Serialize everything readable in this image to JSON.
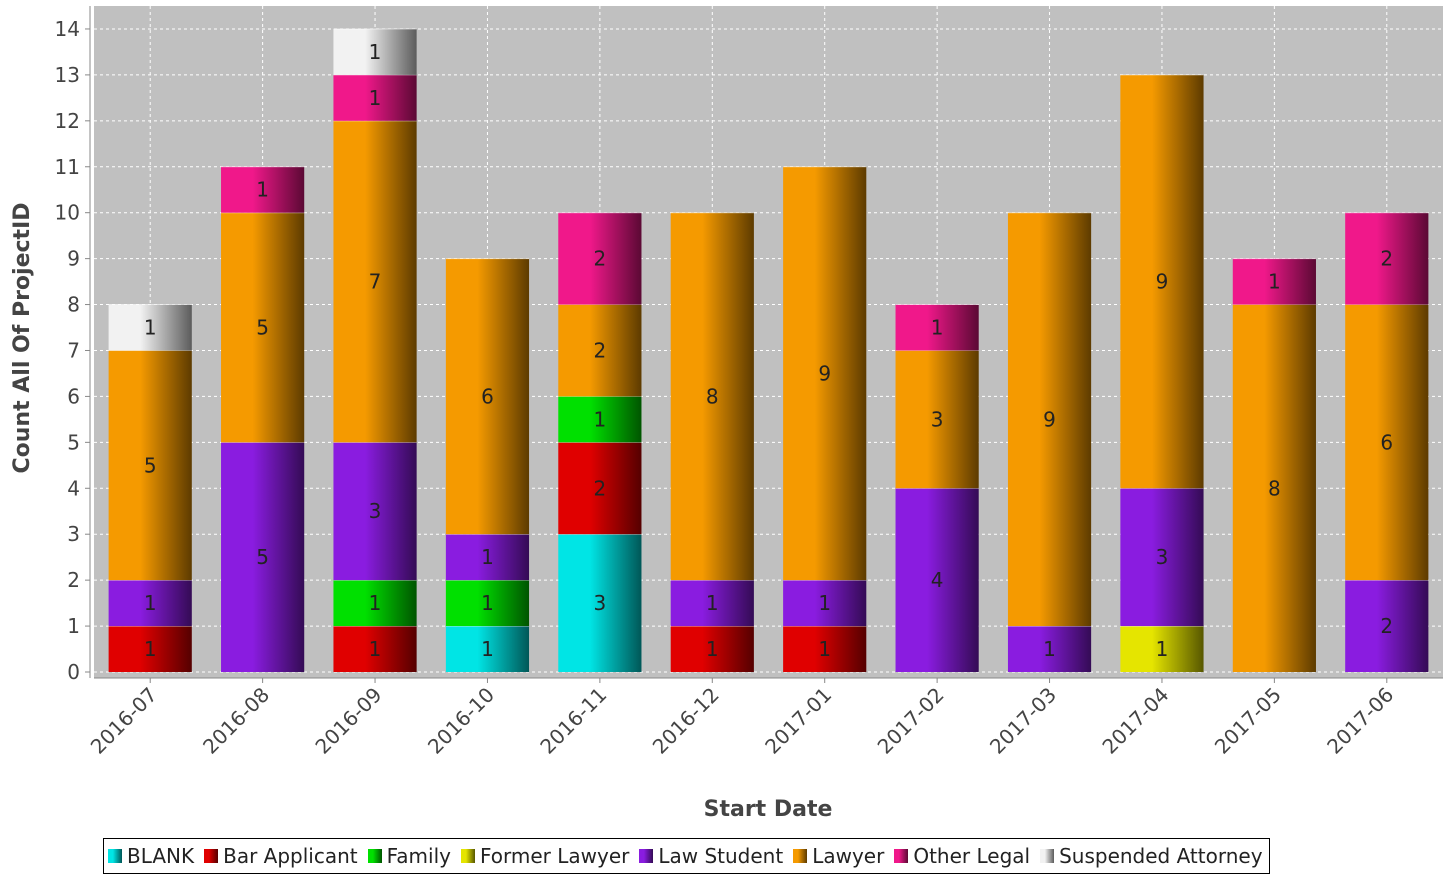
{
  "chart_data": {
    "type": "bar",
    "stacked": true,
    "title": "",
    "xlabel": "Start Date",
    "ylabel": "Count All Of ProjectID",
    "ylim": [
      0,
      14.5
    ],
    "yticks": [
      0,
      1,
      2,
      3,
      4,
      5,
      6,
      7,
      8,
      9,
      10,
      11,
      12,
      13,
      14
    ],
    "grid": true,
    "legend_position": "bottom",
    "categories": [
      "2016-07",
      "2016-08",
      "2016-09",
      "2016-10",
      "2016-11",
      "2016-12",
      "2017-01",
      "2017-02",
      "2017-03",
      "2017-04",
      "2017-05",
      "2017-06"
    ],
    "series": [
      {
        "name": "BLANK",
        "color": "#00E5E5",
        "values": [
          0,
          0,
          0,
          1,
          3,
          0,
          0,
          0,
          0,
          0,
          0,
          0
        ]
      },
      {
        "name": "Bar Applicant",
        "color": "#E00000",
        "values": [
          1,
          0,
          1,
          0,
          2,
          1,
          1,
          0,
          0,
          0,
          0,
          0
        ]
      },
      {
        "name": "Family",
        "color": "#00E000",
        "values": [
          0,
          0,
          1,
          1,
          1,
          0,
          0,
          0,
          0,
          0,
          0,
          0
        ]
      },
      {
        "name": "Former Lawyer",
        "color": "#E5E500",
        "values": [
          0,
          0,
          0,
          0,
          0,
          0,
          0,
          0,
          0,
          1,
          0,
          0
        ]
      },
      {
        "name": "Law Student",
        "color": "#8A1CE0",
        "values": [
          1,
          5,
          3,
          1,
          0,
          1,
          1,
          4,
          1,
          3,
          0,
          2
        ]
      },
      {
        "name": "Lawyer",
        "color": "#F59A00",
        "values": [
          5,
          5,
          7,
          6,
          2,
          8,
          9,
          3,
          9,
          9,
          8,
          6
        ]
      },
      {
        "name": "Other Legal",
        "color": "#F0188A",
        "values": [
          0,
          1,
          1,
          0,
          2,
          0,
          0,
          1,
          0,
          0,
          1,
          2
        ]
      },
      {
        "name": "Suspended Attorney",
        "color": "#F2F2F2",
        "values": [
          1,
          0,
          1,
          0,
          0,
          0,
          0,
          0,
          0,
          0,
          0,
          0
        ]
      }
    ]
  }
}
